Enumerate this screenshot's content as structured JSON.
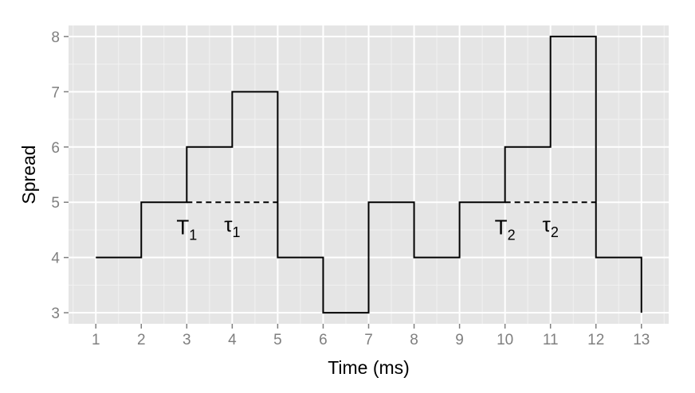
{
  "chart_data": {
    "type": "line",
    "step": true,
    "xlabel": "Time (ms)",
    "ylabel": "Spread",
    "xlim": [
      0.4,
      13.6
    ],
    "ylim": [
      2.8,
      8.2
    ],
    "x_ticks": [
      1,
      2,
      3,
      4,
      5,
      6,
      7,
      8,
      9,
      10,
      11,
      12,
      13
    ],
    "y_ticks": [
      3,
      4,
      5,
      6,
      7,
      8
    ],
    "grid": true,
    "series": [
      {
        "x": [
          1,
          2,
          3,
          4,
          5,
          6,
          7,
          8,
          9,
          10,
          11,
          12,
          13
        ],
        "y": [
          4,
          5,
          6,
          7,
          4,
          3,
          5,
          4,
          5,
          6,
          8,
          4,
          3
        ]
      }
    ],
    "reference_lines": [
      {
        "x0": 3,
        "x1": 5,
        "y": 5,
        "style": "dashed"
      },
      {
        "x0": 10,
        "x1": 12,
        "y": 5,
        "style": "dashed"
      }
    ],
    "annotations": [
      {
        "main": "T",
        "sub": "1",
        "x": 3,
        "y": 4.55
      },
      {
        "main": "τ",
        "sub": "1",
        "x": 4,
        "y": 4.6
      },
      {
        "main": "T",
        "sub": "2",
        "x": 10,
        "y": 4.55
      },
      {
        "main": "τ",
        "sub": "2",
        "x": 11,
        "y": 4.6
      }
    ],
    "colors": {
      "panel": "#e5e5e5",
      "grid_major": "#ffffff",
      "grid_minor": "#f2f2f2",
      "line": "#000000",
      "tick_text": "#7f7f7f"
    }
  }
}
